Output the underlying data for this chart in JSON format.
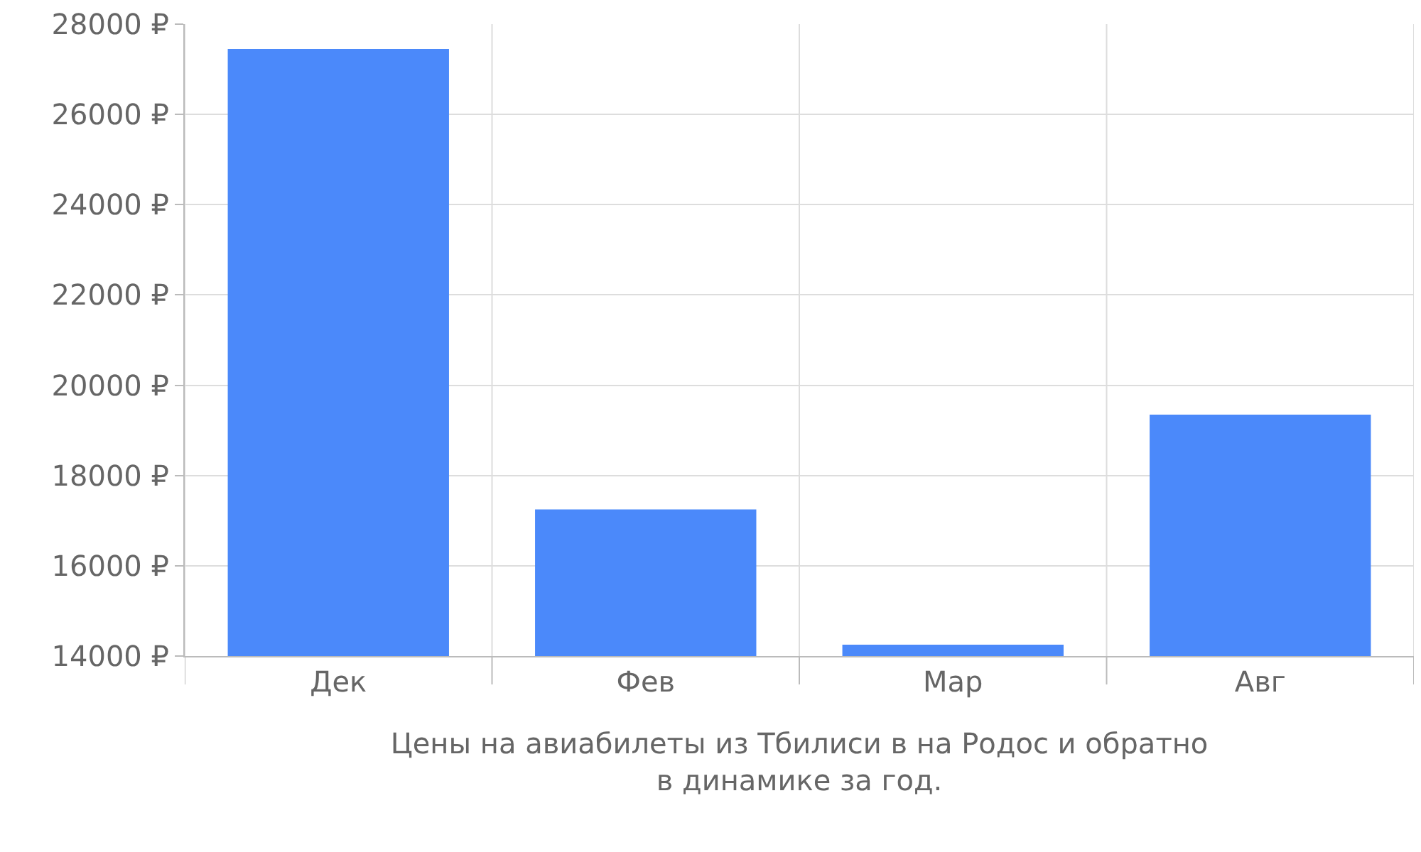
{
  "chart_data": {
    "type": "bar",
    "xlabel": "Цены на авиабилеты из Тбилиси в на Родос и обратно\nв динамике за год.",
    "categories": [
      "Дек",
      "Фев",
      "Мар",
      "Авг"
    ],
    "values": [
      27450,
      17250,
      14250,
      19350
    ],
    "color": "#4b89fa",
    "ylim": [
      14000,
      28000
    ],
    "yticks": [
      {
        "value": 14000,
        "label": "14000 ₽"
      },
      {
        "value": 16000,
        "label": "16000 ₽"
      },
      {
        "value": 18000,
        "label": "18000 ₽"
      },
      {
        "value": 20000,
        "label": "20000 ₽"
      },
      {
        "value": 22000,
        "label": "22000 ₽"
      },
      {
        "value": 24000,
        "label": "24000 ₽"
      },
      {
        "value": 26000,
        "label": "26000 ₽"
      },
      {
        "value": 28000,
        "label": "28000 ₽"
      }
    ],
    "grid": true
  }
}
